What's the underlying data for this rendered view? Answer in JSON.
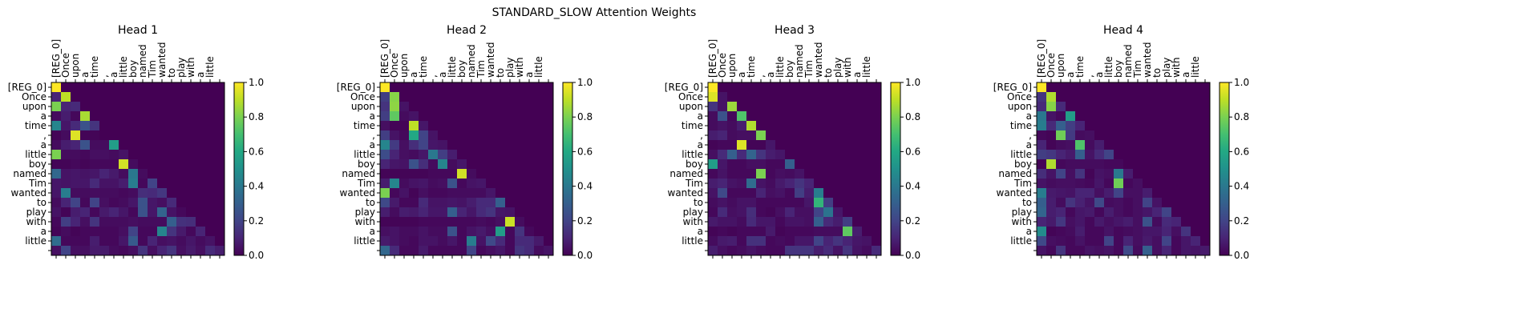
{
  "suptitle": "STANDARD_SLOW Attention Weights",
  "colormap": "viridis",
  "chart_data": {
    "type": "heatmap",
    "tokens": [
      "[REG_0]",
      "Once",
      "upon",
      "a",
      "time",
      ",",
      "a",
      "little",
      "boy",
      "named",
      "Tim",
      "wanted",
      "to",
      "play",
      "with",
      "a",
      "little",
      ""
    ],
    "colorbar": {
      "range": [
        0.0,
        1.0
      ],
      "ticks": [
        "0.0",
        "0.2",
        "0.4",
        "0.6",
        "0.8",
        "1.0"
      ]
    },
    "heads": [
      {
        "title": "Head 1",
        "rows": [
          [
            1.0
          ],
          [
            0.1,
            0.9
          ],
          [
            0.8,
            0.1,
            0.12
          ],
          [
            0.03,
            0.08,
            0.02,
            0.87
          ],
          [
            0.45,
            0.06,
            0.12,
            0.25,
            0.15
          ],
          [
            0.01,
            0.03,
            0.95,
            0.01,
            0.01,
            0.0
          ],
          [
            0.03,
            0.08,
            0.1,
            0.25,
            0.03,
            0.03,
            0.55
          ],
          [
            0.8,
            0.03,
            0.03,
            0.02,
            0.04,
            0.04,
            0.03,
            0.05
          ],
          [
            0.01,
            0.01,
            0.02,
            0.01,
            0.02,
            0.02,
            0.02,
            0.93,
            0.03
          ],
          [
            0.33,
            0.05,
            0.06,
            0.05,
            0.06,
            0.1,
            0.07,
            0.03,
            0.4,
            0.03
          ],
          [
            0.06,
            0.05,
            0.06,
            0.06,
            0.12,
            0.05,
            0.05,
            0.08,
            0.42,
            0.02,
            0.2
          ],
          [
            0.06,
            0.42,
            0.03,
            0.03,
            0.03,
            0.03,
            0.03,
            0.02,
            0.03,
            0.13,
            0.12,
            0.16
          ],
          [
            0.03,
            0.1,
            0.2,
            0.02,
            0.2,
            0.04,
            0.02,
            0.03,
            0.06,
            0.25,
            0.06,
            0.04,
            0.12
          ],
          [
            0.05,
            0.01,
            0.08,
            0.1,
            0.02,
            0.07,
            0.1,
            0.06,
            0.02,
            0.25,
            0.06,
            0.32,
            0.05,
            0.02
          ],
          [
            0.02,
            0.18,
            0.1,
            0.04,
            0.15,
            0.03,
            0.03,
            0.03,
            0.04,
            0.03,
            0.03,
            0.03,
            0.3,
            0.14,
            0.13
          ],
          [
            0.01,
            0.03,
            0.01,
            0.02,
            0.02,
            0.02,
            0.02,
            0.04,
            0.2,
            0.02,
            0.02,
            0.45,
            0.15,
            0.07,
            0.02,
            0.1
          ],
          [
            0.35,
            0.02,
            0.02,
            0.02,
            0.08,
            0.02,
            0.02,
            0.06,
            0.28,
            0.02,
            0.1,
            0.04,
            0.05,
            0.03,
            0.06,
            0.03,
            0.05
          ],
          [
            0.04,
            0.2,
            0.04,
            0.04,
            0.07,
            0.07,
            0.03,
            0.02,
            0.04,
            0.15,
            0.04,
            0.1,
            0.15,
            0.04,
            0.07,
            0.04,
            0.12,
            0.08
          ]
        ]
      },
      {
        "title": "Head 2",
        "rows": [
          [
            1.0
          ],
          [
            0.18,
            0.82
          ],
          [
            0.15,
            0.83,
            0.05
          ],
          [
            0.18,
            0.75,
            0.03,
            0.05
          ],
          [
            0.04,
            0.01,
            0.01,
            0.9,
            0.06
          ],
          [
            0.18,
            0.05,
            0.02,
            0.6,
            0.2,
            0.05
          ],
          [
            0.45,
            0.17,
            0.04,
            0.13,
            0.2,
            0.06,
            0.05
          ],
          [
            0.23,
            0.1,
            0.04,
            0.03,
            0.06,
            0.4,
            0.18,
            0.08
          ],
          [
            0.1,
            0.06,
            0.05,
            0.25,
            0.13,
            0.03,
            0.45,
            0.03,
            0.06
          ],
          [
            0.01,
            0.01,
            0.01,
            0.01,
            0.01,
            0.02,
            0.02,
            0.02,
            0.93,
            0.03
          ],
          [
            0.08,
            0.45,
            0.03,
            0.05,
            0.06,
            0.03,
            0.04,
            0.25,
            0.02,
            0.05,
            0.06
          ],
          [
            0.8,
            0.02,
            0.05,
            0.01,
            0.04,
            0.02,
            0.02,
            0.03,
            0.03,
            0.03,
            0.03,
            0.06
          ],
          [
            0.22,
            0.07,
            0.02,
            0.02,
            0.12,
            0.05,
            0.05,
            0.06,
            0.05,
            0.08,
            0.12,
            0.12,
            0.3
          ],
          [
            0.08,
            0.03,
            0.08,
            0.07,
            0.1,
            0.06,
            0.06,
            0.3,
            0.1,
            0.06,
            0.12,
            0.15,
            0.06,
            0.05
          ],
          [
            0.01,
            0.01,
            0.01,
            0.01,
            0.02,
            0.02,
            0.02,
            0.02,
            0.02,
            0.02,
            0.03,
            0.02,
            0.04,
            0.92,
            0.03
          ],
          [
            0.04,
            0.05,
            0.03,
            0.03,
            0.05,
            0.03,
            0.03,
            0.25,
            0.02,
            0.05,
            0.07,
            0.04,
            0.55,
            0.02,
            0.15,
            0.02
          ],
          [
            0.07,
            0.05,
            0.03,
            0.02,
            0.05,
            0.05,
            0.03,
            0.06,
            0.02,
            0.42,
            0.05,
            0.22,
            0.12,
            0.02,
            0.12,
            0.12,
            0.07
          ],
          [
            0.33,
            0.12,
            0.02,
            0.02,
            0.07,
            0.02,
            0.02,
            0.02,
            0.02,
            0.2,
            0.02,
            0.04,
            0.06,
            0.02,
            0.15,
            0.12,
            0.03,
            0.05
          ]
        ]
      },
      {
        "title": "Head 3",
        "rows": [
          [
            1.0
          ],
          [
            0.95,
            0.05
          ],
          [
            0.15,
            0.05,
            0.85
          ],
          [
            0.03,
            0.25,
            0.02,
            0.72
          ],
          [
            0.03,
            0.05,
            0.03,
            0.08,
            0.88
          ],
          [
            0.08,
            0.1,
            0.03,
            0.04,
            0.04,
            0.8
          ],
          [
            0.01,
            0.02,
            0.02,
            0.95,
            0.01,
            0.01,
            0.06
          ],
          [
            0.04,
            0.12,
            0.3,
            0.12,
            0.32,
            0.15,
            0.08,
            0.06
          ],
          [
            0.55,
            0.06,
            0.02,
            0.02,
            0.04,
            0.04,
            0.02,
            0.02,
            0.3
          ],
          [
            0.02,
            0.05,
            0.02,
            0.02,
            0.02,
            0.8,
            0.02,
            0.04,
            0.03,
            0.05
          ],
          [
            0.08,
            0.1,
            0.05,
            0.04,
            0.35,
            0.05,
            0.03,
            0.07,
            0.1,
            0.15,
            0.1
          ],
          [
            0.05,
            0.22,
            0.02,
            0.02,
            0.02,
            0.1,
            0.04,
            0.05,
            0.02,
            0.18,
            0.08,
            0.42
          ],
          [
            0.03,
            0.05,
            0.03,
            0.05,
            0.05,
            0.02,
            0.02,
            0.02,
            0.02,
            0.02,
            0.06,
            0.65,
            0.18
          ],
          [
            0.02,
            0.12,
            0.04,
            0.05,
            0.13,
            0.02,
            0.01,
            0.04,
            0.1,
            0.04,
            0.04,
            0.2,
            0.38,
            0.06
          ],
          [
            0.07,
            0.05,
            0.05,
            0.03,
            0.12,
            0.06,
            0.06,
            0.02,
            0.05,
            0.05,
            0.04,
            0.3,
            0.12,
            0.08,
            0.18
          ],
          [
            0.01,
            0.02,
            0.01,
            0.02,
            0.02,
            0.02,
            0.07,
            0.01,
            0.02,
            0.02,
            0.02,
            0.03,
            0.03,
            0.03,
            0.75,
            0.08
          ],
          [
            0.03,
            0.07,
            0.08,
            0.02,
            0.14,
            0.14,
            0.02,
            0.03,
            0.02,
            0.06,
            0.06,
            0.2,
            0.1,
            0.15,
            0.1,
            0.06,
            0.05
          ],
          [
            0.08,
            0.04,
            0.02,
            0.03,
            0.05,
            0.03,
            0.02,
            0.02,
            0.15,
            0.15,
            0.15,
            0.08,
            0.12,
            0.05,
            0.15,
            0.05,
            0.03,
            0.12
          ]
        ]
      },
      {
        "title": "Head 4",
        "rows": [
          [
            1.0
          ],
          [
            0.15,
            0.88
          ],
          [
            0.12,
            0.82,
            0.12
          ],
          [
            0.4,
            0.05,
            0.02,
            0.55
          ],
          [
            0.42,
            0.12,
            0.3,
            0.18,
            0.1
          ],
          [
            0.02,
            0.01,
            0.78,
            0.17,
            0.03,
            0.04
          ],
          [
            0.1,
            0.01,
            0.03,
            0.04,
            0.72,
            0.03,
            0.08
          ],
          [
            0.18,
            0.16,
            0.1,
            0.07,
            0.3,
            0.05,
            0.12,
            0.2
          ],
          [
            0.01,
            0.88,
            0.02,
            0.03,
            0.03,
            0.03,
            0.03,
            0.02,
            0.02
          ],
          [
            0.13,
            0.05,
            0.2,
            0.04,
            0.15,
            0.01,
            0.05,
            0.04,
            0.4,
            0.08
          ],
          [
            0.05,
            0.03,
            0.04,
            0.04,
            0.03,
            0.02,
            0.06,
            0.02,
            0.78,
            0.02,
            0.04
          ],
          [
            0.42,
            0.07,
            0.06,
            0.05,
            0.1,
            0.1,
            0.04,
            0.08,
            0.2,
            0.04,
            0.04,
            0.08
          ],
          [
            0.3,
            0.08,
            0.03,
            0.15,
            0.09,
            0.05,
            0.22,
            0.03,
            0.04,
            0.02,
            0.04,
            0.2,
            0.05
          ],
          [
            0.32,
            0.08,
            0.1,
            0.02,
            0.06,
            0.07,
            0.02,
            0.08,
            0.04,
            0.02,
            0.04,
            0.06,
            0.1,
            0.2
          ],
          [
            0.1,
            0.07,
            0.16,
            0.04,
            0.06,
            0.02,
            0.07,
            0.04,
            0.06,
            0.08,
            0.04,
            0.25,
            0.03,
            0.12,
            0.1
          ],
          [
            0.48,
            0.01,
            0.02,
            0.03,
            0.08,
            0.02,
            0.02,
            0.05,
            0.02,
            0.03,
            0.04,
            0.06,
            0.06,
            0.1,
            0.04,
            0.15
          ],
          [
            0.22,
            0.04,
            0.03,
            0.02,
            0.05,
            0.02,
            0.02,
            0.2,
            0.02,
            0.1,
            0.04,
            0.07,
            0.04,
            0.2,
            0.02,
            0.06,
            0.1
          ],
          [
            0.05,
            0.02,
            0.15,
            0.02,
            0.02,
            0.05,
            0.04,
            0.05,
            0.02,
            0.22,
            0.03,
            0.3,
            0.04,
            0.1,
            0.02,
            0.06,
            0.05,
            0.07
          ]
        ]
      }
    ]
  }
}
